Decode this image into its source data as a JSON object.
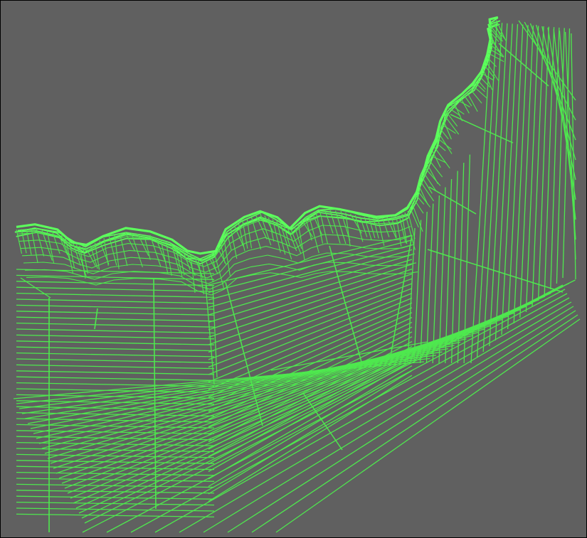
{
  "viewport": {
    "background_color": "#606060",
    "line_color": "#4ee84e",
    "bright_line_color": "#5cff5c",
    "frame_color": "#000000"
  },
  "figure": {
    "type": "3d-wireframe-terrain-mesh",
    "regions": [
      "left-flat-section",
      "center-sloped-section",
      "right-steep-section",
      "lower-diagonal-section",
      "top-ridge"
    ]
  }
}
